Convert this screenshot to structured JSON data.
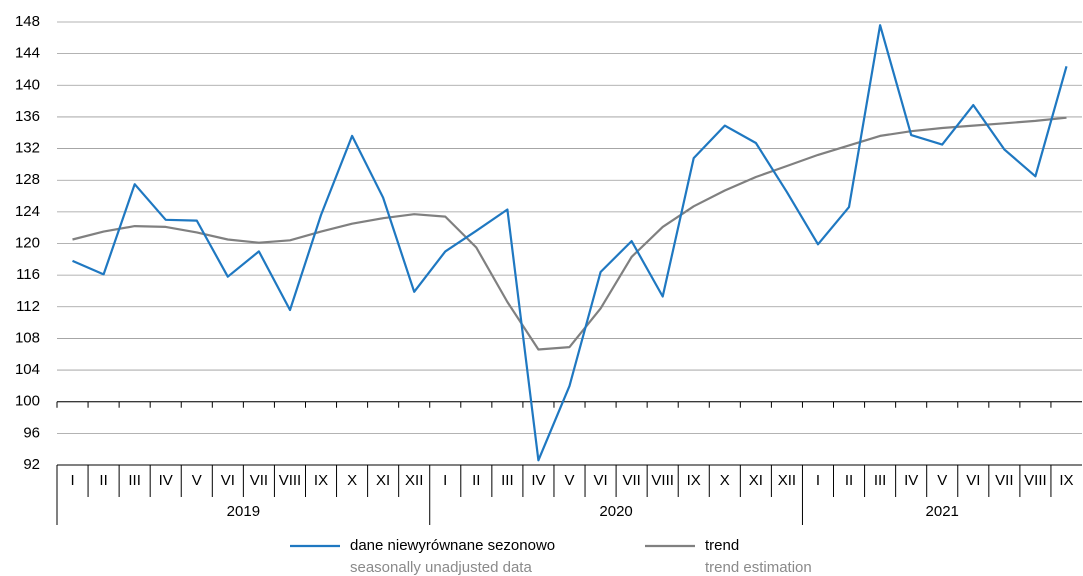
{
  "chart_data": {
    "type": "line",
    "categories": [
      "I",
      "II",
      "III",
      "IV",
      "V",
      "VI",
      "VII",
      "VIII",
      "IX",
      "X",
      "XI",
      "XII",
      "I",
      "II",
      "III",
      "IV",
      "V",
      "VI",
      "VII",
      "VIII",
      "IX",
      "X",
      "XI",
      "XII",
      "I",
      "II",
      "III",
      "IV",
      "V",
      "VI",
      "VII",
      "VIII",
      "IX"
    ],
    "groups": [
      "2019",
      "2020",
      "2021"
    ],
    "series": [
      {
        "name": "dane niewyrównane sezonowo",
        "name_en": "seasonally unadjusted data",
        "color": "#1f78c1",
        "values": [
          117.8,
          116.1,
          127.5,
          123.0,
          122.9,
          115.8,
          119.0,
          111.6,
          123.6,
          133.6,
          125.8,
          113.9,
          119.0,
          121.6,
          124.3,
          92.6,
          102.0,
          116.4,
          120.3,
          113.3,
          130.8,
          134.9,
          132.7,
          126.5,
          119.9,
          124.6,
          147.6,
          133.7,
          132.5,
          137.5,
          131.9,
          128.5,
          142.4
        ]
      },
      {
        "name": "trend",
        "name_en": "trend estimation",
        "color": "#808080",
        "values": [
          120.5,
          121.5,
          122.2,
          122.1,
          121.4,
          120.5,
          120.1,
          120.4,
          121.5,
          122.5,
          123.2,
          123.7,
          123.4,
          119.5,
          112.6,
          106.6,
          106.9,
          111.8,
          118.3,
          122.1,
          124.7,
          126.7,
          128.4,
          129.8,
          131.2,
          132.4,
          133.6,
          134.2,
          134.6,
          134.9,
          135.2,
          135.5,
          135.9
        ]
      }
    ],
    "ylim": [
      92,
      148
    ],
    "yticks": [
      92,
      96,
      100,
      104,
      108,
      112,
      116,
      120,
      124,
      128,
      132,
      136,
      140,
      144,
      148
    ],
    "baseline": 100,
    "grid": true
  }
}
